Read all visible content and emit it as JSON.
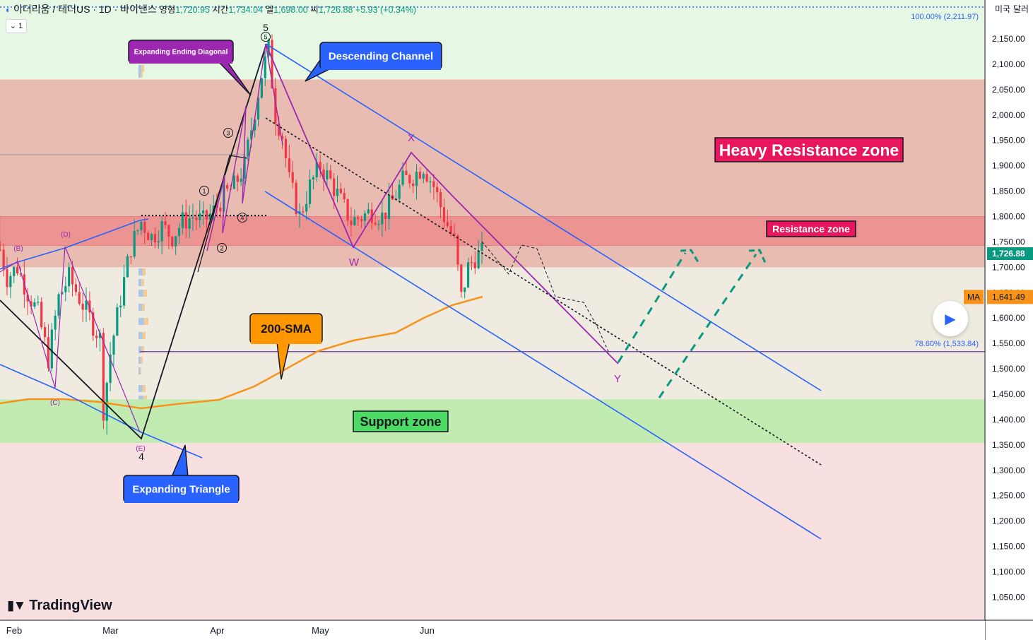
{
  "header": {
    "symbol": "이더리움 / 테더US · 1D · 바이낸스",
    "o_label": "영형",
    "o_value": "1,720.95",
    "h_label": "시간",
    "h_value": "1,734.04",
    "l_label": "엘",
    "l_value": "1,698.00",
    "c_label": "씨",
    "c_value": "1,726.88",
    "change": "+5.93 (+0.34%)",
    "interval_toggle": "1"
  },
  "axis": {
    "currency_label": "미국 달러"
  },
  "branding": {
    "logo_text": "TradingView"
  },
  "colors": {
    "green_zone": "#e6f8e3",
    "heavy_resistance": "#e8bcb0",
    "resistance": "#ec9492",
    "support": "#c1ebb0",
    "channel_blue": "#2962ff",
    "sma_orange": "#f7931a",
    "pattern_purple": "#9c27b0",
    "up_candle": "#089981",
    "down_candle": "#f23645"
  },
  "chart_data": {
    "type": "candlestick",
    "instrument": "이더리움 / 테더US",
    "timeframe": "1D",
    "exchange": "바이낸스",
    "ylim": [
      1010,
      2240
    ],
    "y_ticks": [
      2150,
      2100,
      2050,
      2000,
      1950,
      1900,
      1850,
      1800,
      1750,
      1700,
      1650,
      1600,
      1550,
      1500,
      1450,
      1400,
      1350,
      1300,
      1250,
      1200,
      1150,
      1100,
      1050
    ],
    "y_tick_labels": [
      "2,150.00",
      "2,100.00",
      "2,050.00",
      "2,000.00",
      "1,950.00",
      "1,900.00",
      "1,850.00",
      "1,800.00",
      "1,750.00",
      "1,700.00",
      "1,650.00",
      "1,600.00",
      "1,550.00",
      "1,500.00",
      "1,450.00",
      "1,400.00",
      "1,350.00",
      "1,300.00",
      "1,250.00",
      "1,200.00",
      "1,150.00",
      "1,100.00",
      "1,050.00"
    ],
    "x_ticks": [
      {
        "label": "Feb",
        "day": 0
      },
      {
        "label": "Mar",
        "day": 28
      },
      {
        "label": "Apr",
        "day": 59
      },
      {
        "label": "May",
        "day": 89
      },
      {
        "label": "Jun",
        "day": 120
      }
    ],
    "last_price": {
      "label": "1,726.88",
      "value": 1726.88
    },
    "ma_value": {
      "tag": "MA",
      "label": "1,641.49",
      "value": 1641.49
    },
    "fib_levels": [
      {
        "label": "100.00% (2,211.97)",
        "value": 2211.97
      },
      {
        "label": "78.60% (1,533.84)",
        "value": 1533.84
      }
    ],
    "zones": [
      {
        "name": "Heavy Resistance zone",
        "from": 1700,
        "to": 2070
      },
      {
        "name": "Resistance zone",
        "from": 1743,
        "to": 1800
      },
      {
        "name": "Support zone",
        "from": 1354,
        "to": 1440
      }
    ],
    "callouts": {
      "ending_diagonal": "Expanding Ending Diagonal",
      "descending_channel": "Descending Channel",
      "sma200": "200-SMA",
      "expanding_triangle": "Expanding Triangle"
    },
    "wave_labels": {
      "w5": "5",
      "w4": "4",
      "c1": "1",
      "c2": "2",
      "c3": "3",
      "c4": "4",
      "c5": "5",
      "A": "(B)",
      "D": "(D)",
      "C": "(C)",
      "E": "(E)",
      "X": "X",
      "W": "W",
      "Y": "Y"
    },
    "sma200": [
      [
        -3,
        1425
      ],
      [
        5,
        1440
      ],
      [
        12,
        1440
      ],
      [
        20,
        1435
      ],
      [
        28,
        1420
      ],
      [
        36,
        1425
      ],
      [
        44,
        1430
      ],
      [
        50,
        1435
      ],
      [
        58,
        1470
      ],
      [
        66,
        1510
      ],
      [
        74,
        1545
      ],
      [
        82,
        1570
      ],
      [
        90,
        1580
      ],
      [
        98,
        1595
      ],
      [
        106,
        1610
      ],
      [
        114,
        1625
      ],
      [
        122,
        1638
      ],
      [
        130,
        1650
      ],
      [
        134,
        1660
      ],
      [
        138,
        1663
      ],
      [
        142,
        1668
      ],
      [
        136,
        1662
      ]
    ],
    "candles": []
  }
}
